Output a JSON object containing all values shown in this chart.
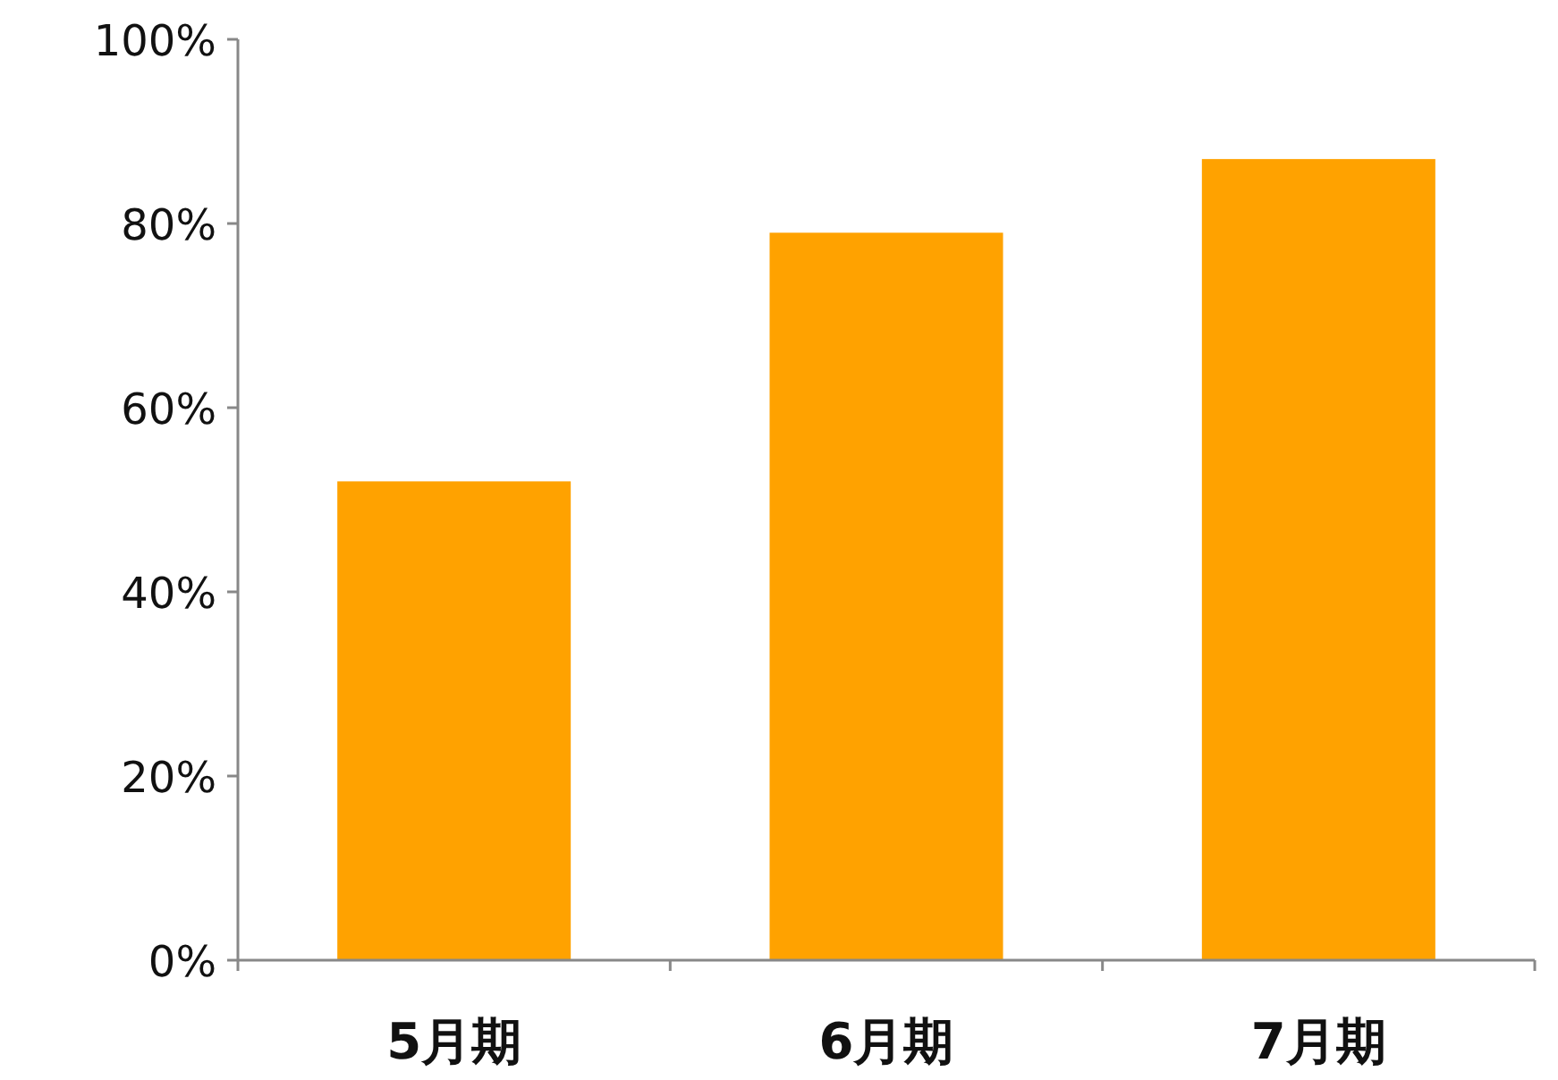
{
  "chart_data": {
    "type": "bar",
    "categories": [
      "5月期",
      "6月期",
      "7月期"
    ],
    "values": [
      52,
      79,
      87
    ],
    "color": "#ffa200",
    "ylim": [
      0,
      100
    ],
    "yticks": [
      {
        "value": 0,
        "label": "0%"
      },
      {
        "value": 20,
        "label": "20%"
      },
      {
        "value": 40,
        "label": "40%"
      },
      {
        "value": 60,
        "label": "60%"
      },
      {
        "value": 80,
        "label": "80%"
      },
      {
        "value": 100,
        "label": "100%"
      }
    ],
    "grid": false
  }
}
